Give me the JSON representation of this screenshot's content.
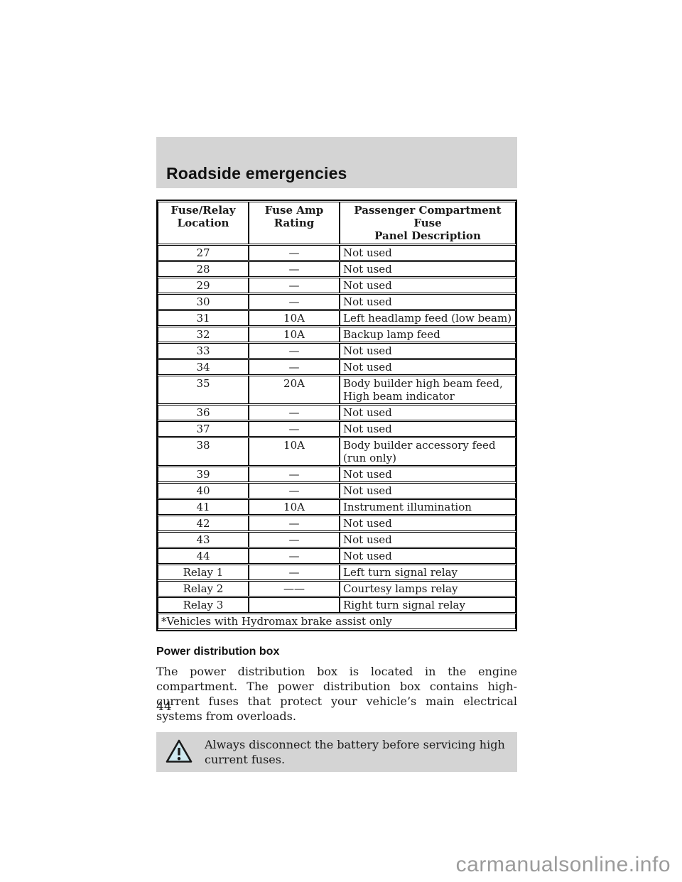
{
  "page": {
    "header_title": "Roadside emergencies",
    "page_number": "44",
    "watermark": "carmanualsonline.info"
  },
  "table": {
    "headers": {
      "location": "Fuse/Relay\nLocation",
      "rating": "Fuse Amp\nRating",
      "description": "Passenger Compartment Fuse\nPanel Description"
    },
    "rows": [
      {
        "loc": "27",
        "rating": "—",
        "desc": "Not used"
      },
      {
        "loc": "28",
        "rating": "—",
        "desc": "Not used"
      },
      {
        "loc": "29",
        "rating": "—",
        "desc": "Not used"
      },
      {
        "loc": "30",
        "rating": "—",
        "desc": "Not used"
      },
      {
        "loc": "31",
        "rating": "10A",
        "desc": "Left headlamp feed (low beam)"
      },
      {
        "loc": "32",
        "rating": "10A",
        "desc": "Backup lamp feed"
      },
      {
        "loc": "33",
        "rating": "—",
        "desc": "Not used"
      },
      {
        "loc": "34",
        "rating": "—",
        "desc": "Not used"
      },
      {
        "loc": "35",
        "rating": "20A",
        "desc": "Body builder high beam feed, High beam indicator"
      },
      {
        "loc": "36",
        "rating": "—",
        "desc": "Not used"
      },
      {
        "loc": "37",
        "rating": "—",
        "desc": "Not used"
      },
      {
        "loc": "38",
        "rating": "10A",
        "desc": "Body builder accessory feed (run only)"
      },
      {
        "loc": "39",
        "rating": "—",
        "desc": "Not used"
      },
      {
        "loc": "40",
        "rating": "—",
        "desc": "Not used"
      },
      {
        "loc": "41",
        "rating": "10A",
        "desc": "Instrument illumination"
      },
      {
        "loc": "42",
        "rating": "—",
        "desc": "Not used"
      },
      {
        "loc": "43",
        "rating": "—",
        "desc": "Not used"
      },
      {
        "loc": "44",
        "rating": "—",
        "desc": "Not used"
      },
      {
        "loc": "Relay 1",
        "rating": "—",
        "desc": "Left turn signal relay"
      },
      {
        "loc": "Relay 2",
        "rating": "——",
        "desc": "Courtesy lamps relay"
      },
      {
        "loc": "Relay 3",
        "rating": "",
        "desc": "Right turn signal relay"
      }
    ],
    "footnote": "*Vehicles with Hydromax brake assist only"
  },
  "section": {
    "heading": "Power distribution box",
    "body": "The power distribution box is located in the engine compartment. The power distribution box contains high-current fuses that protect your vehicle’s main electrical systems from overloads."
  },
  "warning": {
    "text": "Always disconnect the battery before servicing high current fuses."
  },
  "colors": {
    "header_bar_bg": "#d4d4d4",
    "warning_box_bg": "#d4d4d4",
    "warning_icon_fill": "#cfe9f0",
    "watermark_text": "#9b9b9b",
    "text": "#1a1a1a"
  }
}
